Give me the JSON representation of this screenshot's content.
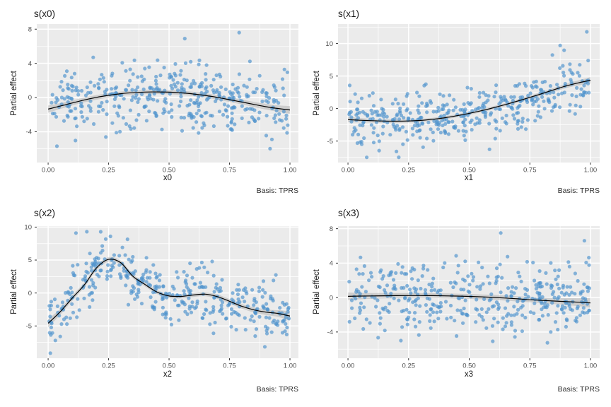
{
  "figure": {
    "ylabel_shared": "Partial effect",
    "caption_shared": "Basis: TPRS",
    "background": "#FFFFFF"
  },
  "colors": {
    "panel_bg": "#EBEBEB",
    "grid": "#FFFFFF",
    "point": "#4F94CD",
    "point_opacity": 0.68,
    "ribbon": "#6E6E6E",
    "ribbon_opacity": 0.24,
    "smooth_line": "#000000",
    "tick_text": "#4D4D4D",
    "tick_mark": "#333333",
    "title_text": "#1A1A1A"
  },
  "chart_data": [
    {
      "id": "s_x0",
      "type": "scatter",
      "title": "s(x0)",
      "xlabel": "x0",
      "ylabel": "Partial effect",
      "caption": "Basis: TPRS",
      "legend": "none",
      "grid": "on",
      "xlim": [
        -0.047,
        1.035
      ],
      "ylim": [
        -7.6,
        8.6
      ],
      "xticks": {
        "values": [
          0,
          0.25,
          0.5,
          0.75,
          1
        ],
        "labels": [
          "0.00",
          "0.25",
          "0.50",
          "0.75",
          "1.00"
        ],
        "minor": [
          0.125,
          0.375,
          0.625,
          0.875
        ]
      },
      "yticks": {
        "values": [
          8,
          4,
          0,
          -4
        ],
        "labels": [
          "8",
          "4",
          "0",
          "-4"
        ],
        "minor": [
          6,
          2,
          -2,
          -6
        ]
      },
      "smooth": {
        "x": [
          0,
          0.05,
          0.1,
          0.15,
          0.2,
          0.25,
          0.3,
          0.35,
          0.4,
          0.45,
          0.5,
          0.55,
          0.6,
          0.65,
          0.7,
          0.75,
          0.8,
          0.85,
          0.9,
          0.95,
          1
        ],
        "y": [
          -1.35,
          -1.0,
          -0.63,
          -0.28,
          0.02,
          0.26,
          0.45,
          0.57,
          0.64,
          0.66,
          0.63,
          0.55,
          0.42,
          0.24,
          0.02,
          -0.25,
          -0.52,
          -0.8,
          -1.07,
          -1.28,
          -1.45
        ],
        "ci": [
          0.42,
          0.34,
          0.3,
          0.28,
          0.27,
          0.26,
          0.25,
          0.25,
          0.25,
          0.25,
          0.25,
          0.25,
          0.25,
          0.26,
          0.26,
          0.27,
          0.28,
          0.3,
          0.33,
          0.37,
          0.45
        ]
      },
      "residuals": {
        "n": 400,
        "sd": 2.0,
        "seed": 101,
        "outliers": [
          [
            0.79,
            7.6
          ],
          [
            0.565,
            6.9
          ]
        ]
      }
    },
    {
      "id": "s_x1",
      "type": "scatter",
      "title": "s(x1)",
      "xlabel": "x1",
      "ylabel": "Partial effect",
      "caption": "Basis: TPRS",
      "legend": "none",
      "grid": "on",
      "xlim": [
        -0.041,
        1.038
      ],
      "ylim": [
        -8.3,
        13.0
      ],
      "xticks": {
        "values": [
          0,
          0.25,
          0.5,
          0.75,
          1
        ],
        "labels": [
          "0.00",
          "0.25",
          "0.50",
          "0.75",
          "1.00"
        ],
        "minor": [
          0.125,
          0.375,
          0.625,
          0.875
        ]
      },
      "yticks": {
        "values": [
          10,
          5,
          0,
          -5
        ],
        "labels": [
          "10",
          "5",
          "0",
          "-5"
        ],
        "minor": [
          12.5,
          7.5,
          2.5,
          -2.5,
          -7.5
        ]
      },
      "smooth": {
        "x": [
          0,
          0.05,
          0.1,
          0.15,
          0.2,
          0.25,
          0.3,
          0.35,
          0.4,
          0.45,
          0.5,
          0.55,
          0.6,
          0.65,
          0.7,
          0.75,
          0.8,
          0.85,
          0.9,
          0.95,
          1
        ],
        "y": [
          -1.7,
          -1.8,
          -1.87,
          -1.92,
          -1.94,
          -1.91,
          -1.82,
          -1.65,
          -1.41,
          -1.1,
          -0.74,
          -0.33,
          0.12,
          0.62,
          1.16,
          1.72,
          2.3,
          2.9,
          3.48,
          3.95,
          4.35
        ],
        "ci": [
          0.42,
          0.34,
          0.29,
          0.27,
          0.25,
          0.24,
          0.24,
          0.23,
          0.23,
          0.23,
          0.23,
          0.23,
          0.24,
          0.24,
          0.25,
          0.26,
          0.28,
          0.3,
          0.33,
          0.38,
          0.5
        ]
      },
      "residuals": {
        "n": 400,
        "sd": 2.0,
        "seed": 202,
        "outliers": [
          [
            0.985,
            11.8
          ],
          [
            0.2,
            -6.6
          ]
        ]
      }
    },
    {
      "id": "s_x2",
      "type": "scatter",
      "title": "s(x2)",
      "xlabel": "x2",
      "ylabel": "Partial effect",
      "caption": "Basis: TPRS",
      "legend": "none",
      "grid": "on",
      "xlim": [
        -0.047,
        1.035
      ],
      "ylim": [
        -9.9,
        10.15
      ],
      "xticks": {
        "values": [
          0,
          0.25,
          0.5,
          0.75,
          1
        ],
        "labels": [
          "0.00",
          "0.25",
          "0.50",
          "0.75",
          "1.00"
        ],
        "minor": [
          0.125,
          0.375,
          0.625,
          0.875
        ]
      },
      "yticks": {
        "values": [
          10,
          5,
          0,
          -5
        ],
        "labels": [
          "10",
          "5",
          "0",
          "-5"
        ],
        "minor": [
          7.5,
          2.5,
          -2.5,
          -7.5
        ]
      },
      "smooth": {
        "x": [
          0,
          0.05,
          0.1,
          0.15,
          0.2,
          0.25,
          0.3,
          0.35,
          0.4,
          0.45,
          0.5,
          0.55,
          0.6,
          0.65,
          0.7,
          0.75,
          0.8,
          0.85,
          0.9,
          0.95,
          1
        ],
        "y": [
          -4.6,
          -2.85,
          -0.75,
          1.25,
          3.8,
          5.1,
          4.6,
          2.55,
          1.3,
          0.15,
          -0.45,
          -0.52,
          -0.3,
          -0.18,
          -0.55,
          -1.25,
          -2.0,
          -2.55,
          -2.9,
          -3.1,
          -3.5
        ],
        "ci": [
          0.62,
          0.46,
          0.4,
          0.36,
          0.34,
          0.33,
          0.32,
          0.31,
          0.3,
          0.3,
          0.3,
          0.3,
          0.3,
          0.31,
          0.32,
          0.33,
          0.35,
          0.38,
          0.43,
          0.52,
          0.68
        ]
      },
      "residuals": {
        "n": 400,
        "sd": 2.0,
        "seed": 303,
        "outliers": [
          [
            0.115,
            9.1
          ],
          [
            0.16,
            9.3
          ],
          [
            0.03,
            -7.2
          ],
          [
            0.05,
            -6.6
          ]
        ]
      }
    },
    {
      "id": "s_x3",
      "type": "scatter",
      "title": "s(x3)",
      "xlabel": "x3",
      "ylabel": "Partial effect",
      "caption": "Basis: TPRS",
      "legend": "none",
      "grid": "on",
      "xlim": [
        -0.041,
        1.038
      ],
      "ylim": [
        -7.05,
        8.3
      ],
      "xticks": {
        "values": [
          0,
          0.25,
          0.5,
          0.75,
          1
        ],
        "labels": [
          "0.00",
          "0.25",
          "0.50",
          "0.75",
          "1.00"
        ],
        "minor": [
          0.125,
          0.375,
          0.625,
          0.875
        ]
      },
      "yticks": {
        "values": [
          8,
          4,
          0,
          -4
        ],
        "labels": [
          "8",
          "4",
          "0",
          "-4"
        ],
        "minor": [
          6,
          2,
          -2,
          -6
        ]
      },
      "smooth": {
        "x": [
          0,
          0.05,
          0.1,
          0.15,
          0.2,
          0.25,
          0.3,
          0.35,
          0.4,
          0.45,
          0.5,
          0.55,
          0.6,
          0.65,
          0.7,
          0.75,
          0.8,
          0.85,
          0.9,
          0.95,
          1
        ],
        "y": [
          0.14,
          0.17,
          0.19,
          0.21,
          0.22,
          0.23,
          0.23,
          0.22,
          0.2,
          0.17,
          0.13,
          0.08,
          0.02,
          -0.06,
          -0.15,
          -0.25,
          -0.33,
          -0.4,
          -0.47,
          -0.54,
          -0.62
        ],
        "ci": [
          0.44,
          0.37,
          0.33,
          0.31,
          0.3,
          0.29,
          0.28,
          0.28,
          0.28,
          0.28,
          0.28,
          0.28,
          0.29,
          0.29,
          0.3,
          0.31,
          0.33,
          0.36,
          0.4,
          0.46,
          0.56
        ]
      },
      "residuals": {
        "n": 400,
        "sd": 2.0,
        "seed": 404,
        "outliers": [
          [
            0.63,
            7.5
          ],
          [
            0.975,
            6.6
          ]
        ]
      }
    }
  ]
}
